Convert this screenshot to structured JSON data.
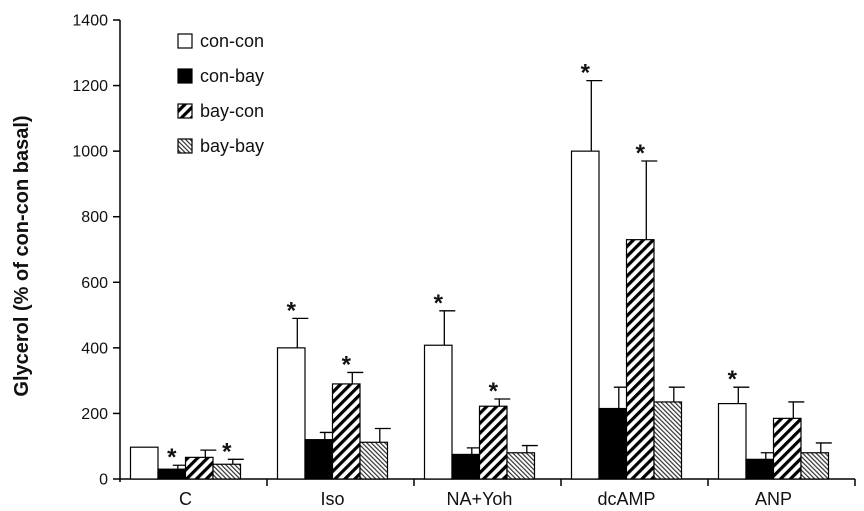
{
  "chart_data": {
    "type": "bar",
    "ylabel": "Glycerol (% of con-con basal)",
    "xlabel": "",
    "ylim": [
      0,
      1400
    ],
    "yticks": [
      0,
      200,
      400,
      600,
      800,
      1000,
      1200,
      1400
    ],
    "categories": [
      "C",
      "Iso",
      "NA+Yoh",
      "dcAMP",
      "ANP"
    ],
    "legend_position": "top-left",
    "grid": false,
    "series": [
      {
        "name": "con-con",
        "fill": "white",
        "values": [
          97,
          400,
          408,
          1000,
          230
        ],
        "errors": [
          0,
          90,
          105,
          215,
          50
        ],
        "significant": [
          false,
          true,
          true,
          true,
          true
        ]
      },
      {
        "name": "con-bay",
        "fill": "black",
        "values": [
          30,
          120,
          75,
          215,
          60
        ],
        "errors": [
          12,
          22,
          20,
          65,
          20
        ],
        "significant": [
          true,
          false,
          false,
          false,
          false
        ]
      },
      {
        "name": "bay-con",
        "fill": "diagonal-stripes",
        "values": [
          66,
          290,
          222,
          730,
          185
        ],
        "errors": [
          22,
          35,
          22,
          240,
          50
        ],
        "significant": [
          false,
          true,
          true,
          true,
          false
        ]
      },
      {
        "name": "bay-bay",
        "fill": "fine-hatch",
        "values": [
          45,
          112,
          80,
          235,
          80
        ],
        "errors": [
          15,
          42,
          22,
          45,
          30
        ],
        "significant": [
          true,
          false,
          false,
          false,
          false
        ]
      }
    ],
    "significance_marker": "*"
  }
}
